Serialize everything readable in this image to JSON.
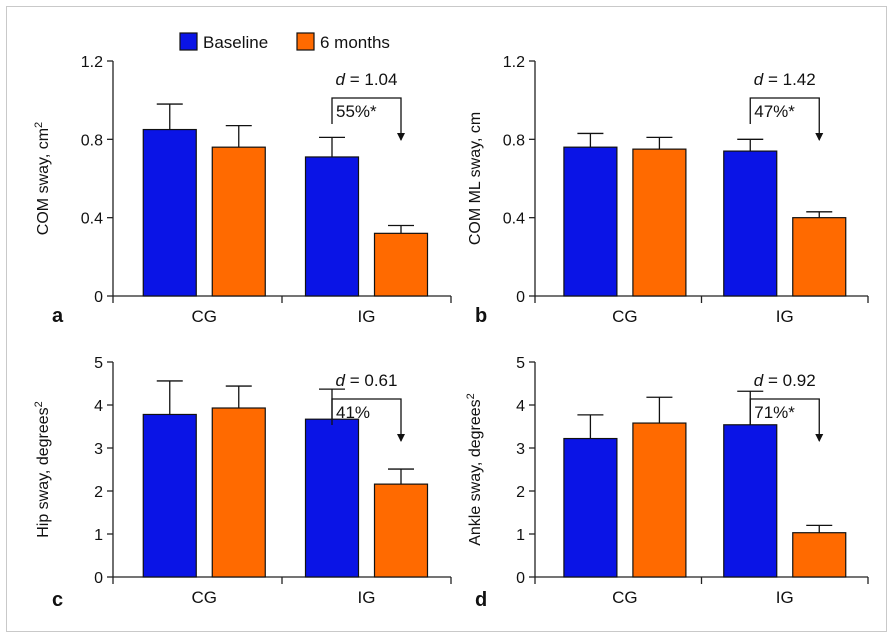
{
  "legend": [
    {
      "label": "Baseline",
      "color": "#0a14e6"
    },
    {
      "label": "6 months",
      "color": "#ff6a00"
    }
  ],
  "colors": {
    "axis": "#222222",
    "bar_edge": "#111111"
  },
  "chart_data": [
    {
      "type": "bar",
      "panel_label": "a",
      "ylabel_main": "COM sway, cm",
      "ylabel_sup": "2",
      "categories": [
        "CG",
        "IG"
      ],
      "ylim": [
        0,
        1.2
      ],
      "yticks": [
        "0",
        "0.4",
        "0.8",
        "1.2"
      ],
      "ytick_values": [
        0,
        0.4,
        0.8,
        1.2
      ],
      "series": [
        {
          "name": "Baseline",
          "values": [
            0.85,
            0.71
          ],
          "errors": [
            0.13,
            0.1
          ]
        },
        {
          "name": "6 months",
          "values": [
            0.76,
            0.32
          ],
          "errors": [
            0.11,
            0.04
          ]
        }
      ],
      "annotation": {
        "d_label": "d",
        "d_value": "= 1.04",
        "change": "55%*"
      }
    },
    {
      "type": "bar",
      "panel_label": "b",
      "ylabel_main": "COM ML sway, cm",
      "ylabel_sup": "",
      "categories": [
        "CG",
        "IG"
      ],
      "ylim": [
        0,
        1.2
      ],
      "yticks": [
        "0",
        "0.4",
        "0.8",
        "1.2"
      ],
      "ytick_values": [
        0,
        0.4,
        0.8,
        1.2
      ],
      "series": [
        {
          "name": "Baseline",
          "values": [
            0.76,
            0.74
          ],
          "errors": [
            0.07,
            0.06
          ]
        },
        {
          "name": "6 months",
          "values": [
            0.75,
            0.4
          ],
          "errors": [
            0.06,
            0.03
          ]
        }
      ],
      "annotation": {
        "d_label": "d",
        "d_value": "= 1.42",
        "change": "47%*"
      }
    },
    {
      "type": "bar",
      "panel_label": "c",
      "ylabel_main": "Hip sway, degrees",
      "ylabel_sup": "2",
      "categories": [
        "CG",
        "IG"
      ],
      "ylim": [
        0,
        5
      ],
      "yticks": [
        "0",
        "1",
        "2",
        "3",
        "4",
        "5"
      ],
      "ytick_values": [
        0,
        1,
        2,
        3,
        4,
        5
      ],
      "series": [
        {
          "name": "Baseline",
          "values": [
            3.78,
            3.67
          ],
          "errors": [
            0.78,
            0.7
          ]
        },
        {
          "name": "6 months",
          "values": [
            3.93,
            2.16
          ],
          "errors": [
            0.51,
            0.35
          ]
        }
      ],
      "annotation": {
        "d_label": "d",
        "d_value": "= 0.61",
        "change": "41%"
      }
    },
    {
      "type": "bar",
      "panel_label": "d",
      "ylabel_main": "Ankle sway, degrees",
      "ylabel_sup": "2",
      "categories": [
        "CG",
        "IG"
      ],
      "ylim": [
        0,
        5
      ],
      "yticks": [
        "0",
        "1",
        "2",
        "3",
        "4",
        "5"
      ],
      "ytick_values": [
        0,
        1,
        2,
        3,
        4,
        5
      ],
      "series": [
        {
          "name": "Baseline",
          "values": [
            3.22,
            3.54
          ],
          "errors": [
            0.55,
            0.78
          ]
        },
        {
          "name": "6 months",
          "values": [
            3.58,
            1.03
          ],
          "errors": [
            0.6,
            0.17
          ]
        }
      ],
      "annotation": {
        "d_label": "d",
        "d_value": "= 0.92",
        "change": "71%*"
      }
    }
  ]
}
